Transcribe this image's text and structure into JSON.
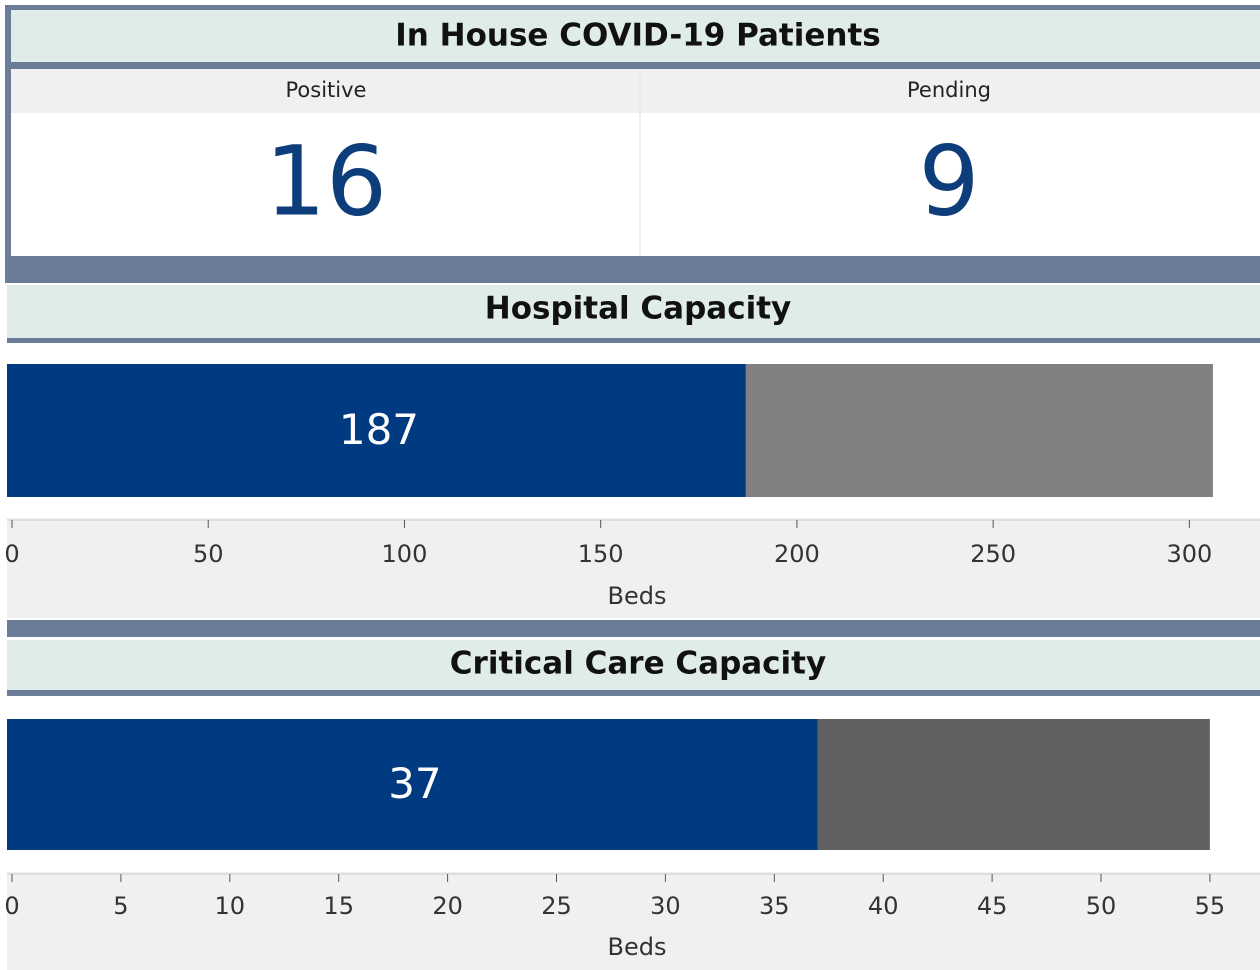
{
  "patients": {
    "title": "In House COVID-19 Patients",
    "columns": [
      {
        "label": "Positive",
        "value": 16
      },
      {
        "label": "Pending",
        "value": 9
      }
    ]
  },
  "chart_data": [
    {
      "type": "bar",
      "orientation": "horizontal",
      "stacked": true,
      "title": "Hospital Capacity",
      "x_label": "Beds",
      "series": [
        {
          "color": "#003a80",
          "values": [
            187
          ]
        },
        {
          "color": "#808080",
          "values": [
            119
          ]
        }
      ],
      "xlim": [
        0,
        318
      ],
      "xticks": [
        0,
        50,
        100,
        150,
        200,
        250,
        300
      ]
    },
    {
      "type": "bar",
      "orientation": "horizontal",
      "stacked": true,
      "title": "Critical Care Capacity",
      "x_label": "Beds",
      "series": [
        {
          "color": "#003a80",
          "values": [
            37
          ]
        },
        {
          "color": "#616161",
          "values": [
            18
          ]
        }
      ],
      "xlim": [
        0,
        57.3
      ],
      "xticks": [
        0,
        5,
        10,
        15,
        20,
        25,
        30,
        35,
        40,
        45,
        50,
        55
      ]
    }
  ]
}
